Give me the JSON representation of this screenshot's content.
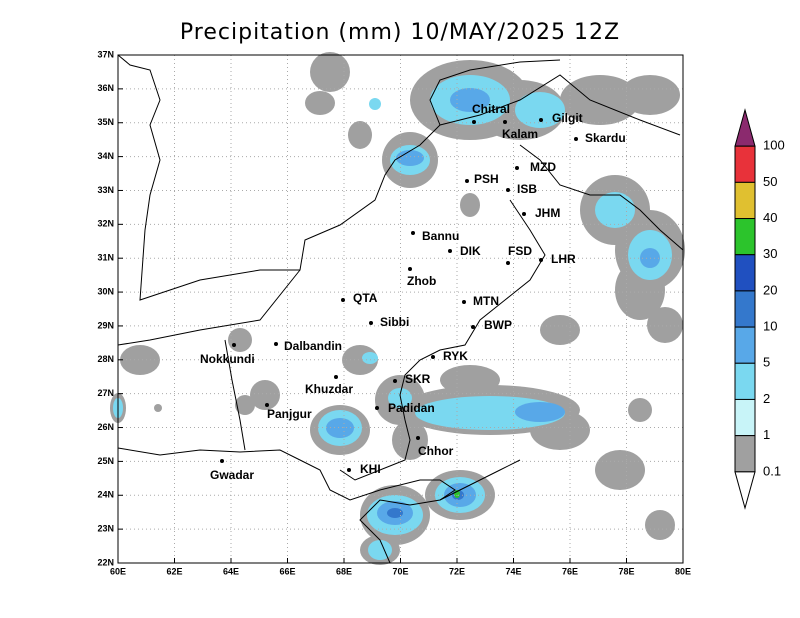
{
  "title": "Precipitation (mm) 10/MAY/2025 12Z",
  "map": {
    "xticks": [
      "60E",
      "62E",
      "64E",
      "66E",
      "68E",
      "70E",
      "72E",
      "74E",
      "76E",
      "78E",
      "80E"
    ],
    "yticks": [
      "37N",
      "36N",
      "35N",
      "34N",
      "33N",
      "32N",
      "31N",
      "30N",
      "29N",
      "28N",
      "27N",
      "26N",
      "25N",
      "24N",
      "23N",
      "22N"
    ],
    "cities": [
      "Chitral",
      "Gilgit",
      "Kalam",
      "Skardu",
      "MZD",
      "PSH",
      "ISB",
      "JHM",
      "Bannu",
      "DIK",
      "FSD",
      "LHR",
      "Zhob",
      "QTA",
      "MTN",
      "Sibbi",
      "BWP",
      "Nokkundi",
      "Dalbandin",
      "RYK",
      "Khuzdar",
      "SKR",
      "Panjgur",
      "Padidan",
      "Chhor",
      "Gwadar",
      "KHI"
    ]
  },
  "colorbar": {
    "levels": [
      100,
      50,
      40,
      30,
      20,
      10,
      5,
      2,
      1,
      0.1
    ],
    "colors": [
      "#8b2a6e",
      "#e8323a",
      "#e0c030",
      "#2cc42c",
      "#2050c0",
      "#3478cc",
      "#58a8e8",
      "#7ad8f0",
      "#c8f4f8",
      "#a0a0a0",
      "#ffffff"
    ]
  }
}
